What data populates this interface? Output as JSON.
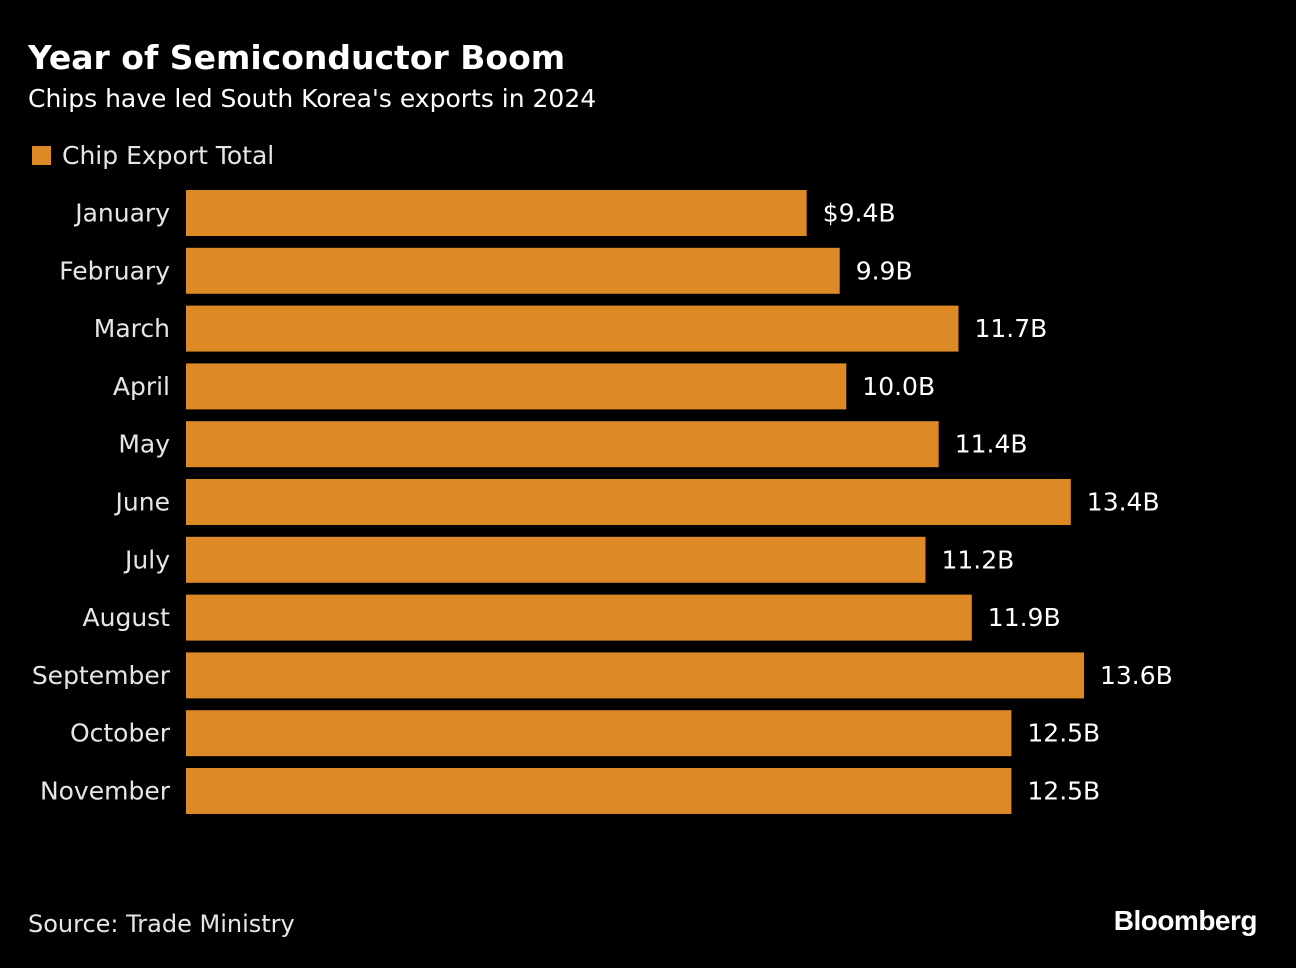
{
  "header": {
    "title": "Year of Semiconductor Boom",
    "subtitle": "Chips have led South Korea's exports in 2024"
  },
  "footer": {
    "source": "Source: Trade Ministry",
    "brand": "Bloomberg"
  },
  "colors": {
    "background": "#000000",
    "bar": "#dd8925"
  },
  "chart_data": {
    "type": "bar",
    "orientation": "horizontal",
    "title": "Year of Semiconductor Boom",
    "subtitle": "Chips have led South Korea's exports in 2024",
    "legend": "top-left",
    "grid": false,
    "categories": [
      "January",
      "February",
      "March",
      "April",
      "May",
      "June",
      "July",
      "August",
      "September",
      "October",
      "November"
    ],
    "series": [
      {
        "name": "Chip Export Total",
        "values": [
          9.4,
          9.9,
          11.7,
          10.0,
          11.4,
          13.4,
          11.2,
          11.9,
          13.6,
          12.5,
          12.5
        ],
        "data_labels": [
          "$9.4B",
          "9.9B",
          "11.7B",
          "10.0B",
          "11.4B",
          "13.4B",
          "11.2B",
          "11.9B",
          "13.6B",
          "12.5B",
          "12.5B"
        ]
      }
    ],
    "xlim": [
      0,
      13.6
    ],
    "unit": "billion US$"
  }
}
